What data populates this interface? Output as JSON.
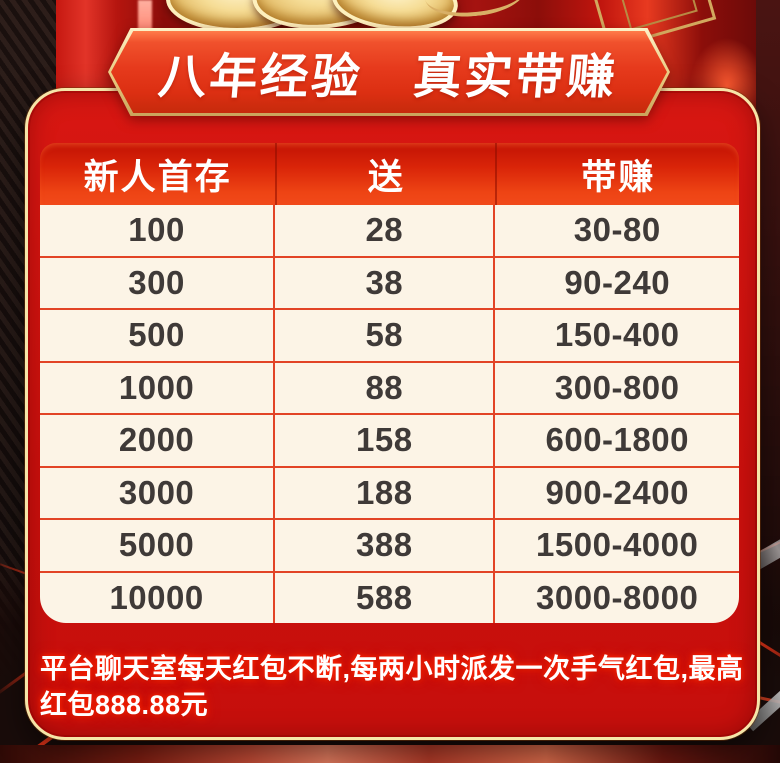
{
  "banner": {
    "title": "八年经验　真实带赚"
  },
  "table": {
    "headers": [
      "新人首存",
      "送",
      "带赚"
    ],
    "rows": [
      [
        "100",
        "28",
        "30-80"
      ],
      [
        "300",
        "38",
        "90-240"
      ],
      [
        "500",
        "58",
        "150-400"
      ],
      [
        "1000",
        "88",
        "300-800"
      ],
      [
        "2000",
        "158",
        "600-1800"
      ],
      [
        "3000",
        "188",
        "900-2400"
      ],
      [
        "5000",
        "388",
        "1500-4000"
      ],
      [
        "10000",
        "588",
        "3000-8000"
      ]
    ]
  },
  "footer": {
    "note": "平台聊天室每天红包不断,每两小时派发一次手气红包,最高红包888.88元"
  },
  "colors": {
    "panel_red": "#cb100d",
    "gold_border": "#f6e5a8",
    "header_gradient_top": "#c21205",
    "header_gradient_bottom": "#f1491a",
    "table_bg": "#fcf4e6",
    "grid_line": "#e24426",
    "cell_text": "#3f3a38",
    "banner_text": "#ffffff",
    "note_glow": "#ff2608"
  }
}
